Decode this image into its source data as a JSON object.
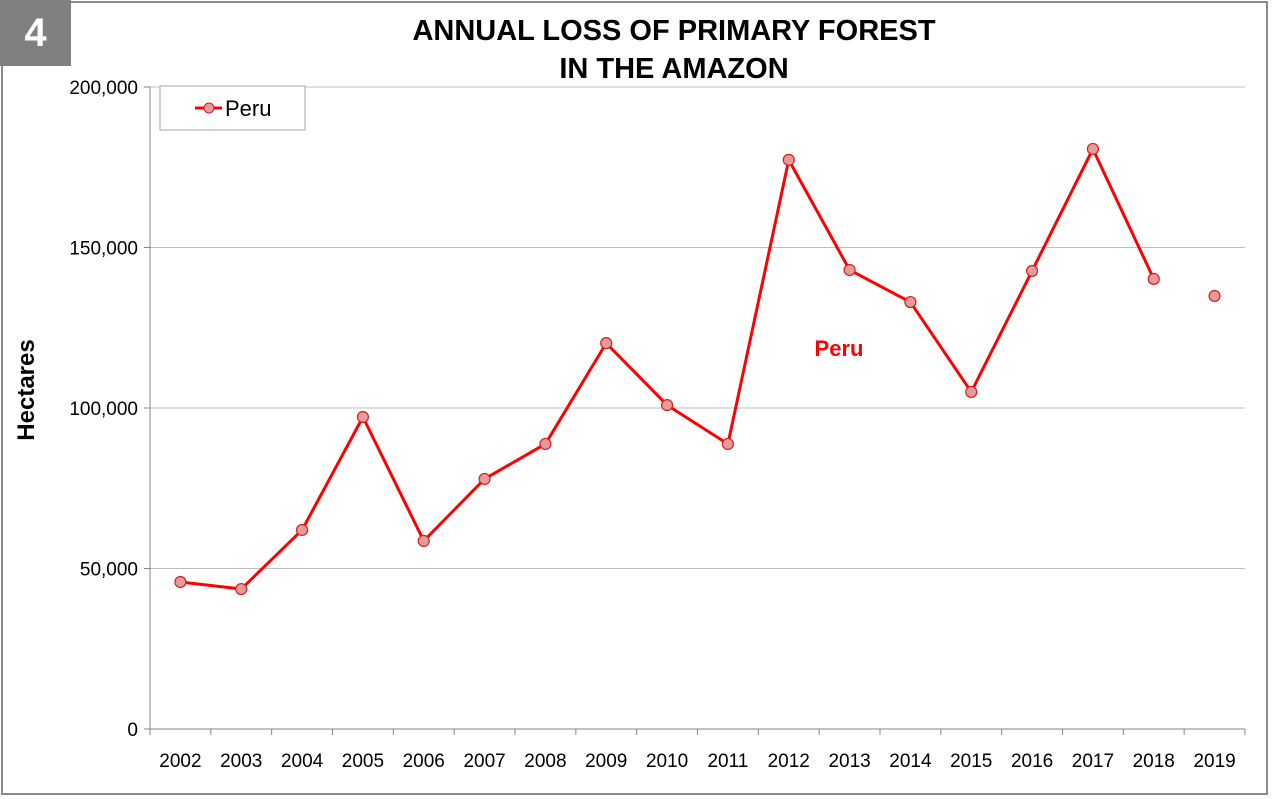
{
  "badge": "4",
  "chart_data": {
    "type": "line",
    "title_line1": "ANNUAL LOSS OF PRIMARY FOREST",
    "title_line2": "IN THE AMAZON",
    "xlabel": "",
    "ylabel": "Hectares",
    "ylim": [
      0,
      200000
    ],
    "yticks": [
      "0",
      "50,000",
      "100,000",
      "150,000",
      "200,000"
    ],
    "ytick_values": [
      0,
      50000,
      100000,
      150000,
      200000
    ],
    "grid": true,
    "legend": {
      "position": "top-left",
      "entries": [
        "Peru"
      ]
    },
    "annotation": "Peru",
    "categories": [
      "2002",
      "2003",
      "2004",
      "2005",
      "2006",
      "2007",
      "2008",
      "2009",
      "2010",
      "2011",
      "2012",
      "2013",
      "2014",
      "2015",
      "2016",
      "2017",
      "2018",
      "2019"
    ],
    "series": [
      {
        "name": "Peru",
        "color": "#ff0000",
        "marker_fill": "#e69a9a",
        "values": [
          45800,
          43600,
          62000,
          97200,
          58600,
          77900,
          88800,
          120200,
          100900,
          88800,
          177300,
          143000,
          133000,
          105000,
          142700,
          180700,
          140200,
          134900
        ],
        "connected_until_index": 16
      }
    ]
  }
}
